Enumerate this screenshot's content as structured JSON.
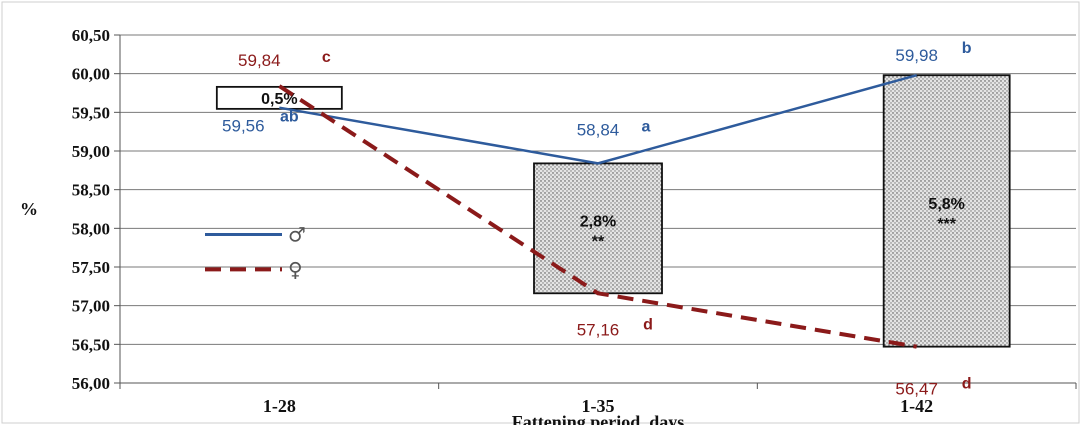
{
  "chart_data": {
    "type": "line",
    "xlabel": "Fattening period, days",
    "ylabel": "%",
    "ylim": [
      56.0,
      60.5
    ],
    "yticks": [
      "56,00",
      "56,50",
      "57,00",
      "57,50",
      "58,00",
      "58,50",
      "59,00",
      "59,50",
      "60,00",
      "60,50"
    ],
    "categories": [
      "1-28",
      "1-35",
      "1-42"
    ],
    "grid": true,
    "legend_position": "left, inside plot",
    "series": [
      {
        "name": "♂",
        "color": "#2e5b9c",
        "style": "solid",
        "values": [
          59.56,
          58.84,
          59.98
        ],
        "labels": [
          "59,56",
          "58,84",
          "59,98"
        ],
        "letters": [
          "ab",
          "a",
          "b"
        ]
      },
      {
        "name": "♀",
        "color": "#8b1a1a",
        "style": "dashed",
        "values": [
          59.84,
          57.16,
          56.47
        ],
        "labels": [
          "59,84",
          "57,16",
          "56,47"
        ],
        "letters": [
          "c",
          "d",
          "d"
        ]
      }
    ],
    "difference_boxes": [
      {
        "category": "1-28",
        "low": 59.56,
        "high": 59.84,
        "percent": "0,5%",
        "significance": "",
        "fill": "none"
      },
      {
        "category": "1-35",
        "low": 57.16,
        "high": 58.84,
        "percent": "2,8%",
        "significance": "**",
        "fill": "dotted"
      },
      {
        "category": "1-42",
        "low": 56.47,
        "high": 59.98,
        "percent": "5,8%",
        "significance": "***",
        "fill": "dotted"
      }
    ]
  }
}
